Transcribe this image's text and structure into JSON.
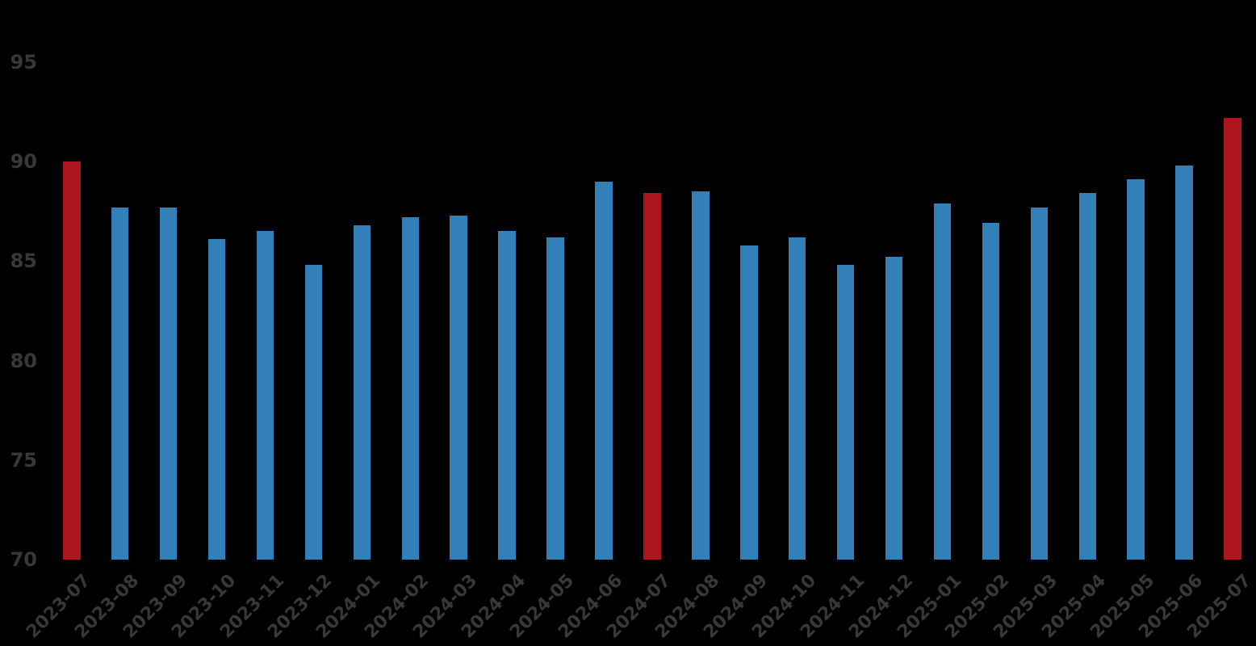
{
  "chart_data": {
    "type": "bar",
    "title": "",
    "xlabel": "",
    "ylabel": "",
    "grid": false,
    "legend": null,
    "categories": [
      "2023-07",
      "2023-08",
      "2023-09",
      "2023-10",
      "2023-11",
      "2023-12",
      "2024-01",
      "2024-02",
      "2024-03",
      "2024-04",
      "2024-05",
      "2024-06",
      "2024-07",
      "2024-08",
      "2024-09",
      "2024-10",
      "2024-11",
      "2024-12",
      "2025-01",
      "2025-02",
      "2025-03",
      "2025-04",
      "2025-05",
      "2025-06",
      "2025-07"
    ],
    "values": [
      90.0,
      87.7,
      87.7,
      86.1,
      86.5,
      84.8,
      86.8,
      87.2,
      87.3,
      86.5,
      86.2,
      89.0,
      88.4,
      88.5,
      85.8,
      86.2,
      84.8,
      85.2,
      87.9,
      86.9,
      87.7,
      88.4,
      89.1,
      89.8,
      92.2
    ],
    "highlighted_categories": [
      "2023-07",
      "2024-07",
      "2025-07"
    ],
    "yticks": [
      70,
      75,
      80,
      85,
      90,
      95
    ],
    "ytick_labels": [
      "70",
      "75",
      "80",
      "85",
      "90",
      "95"
    ],
    "ylim": [
      70,
      98
    ],
    "colors": {
      "bar": "#337FB8",
      "highlight": "#AB151B",
      "axis_text": "#383838",
      "background": "#000000"
    }
  }
}
